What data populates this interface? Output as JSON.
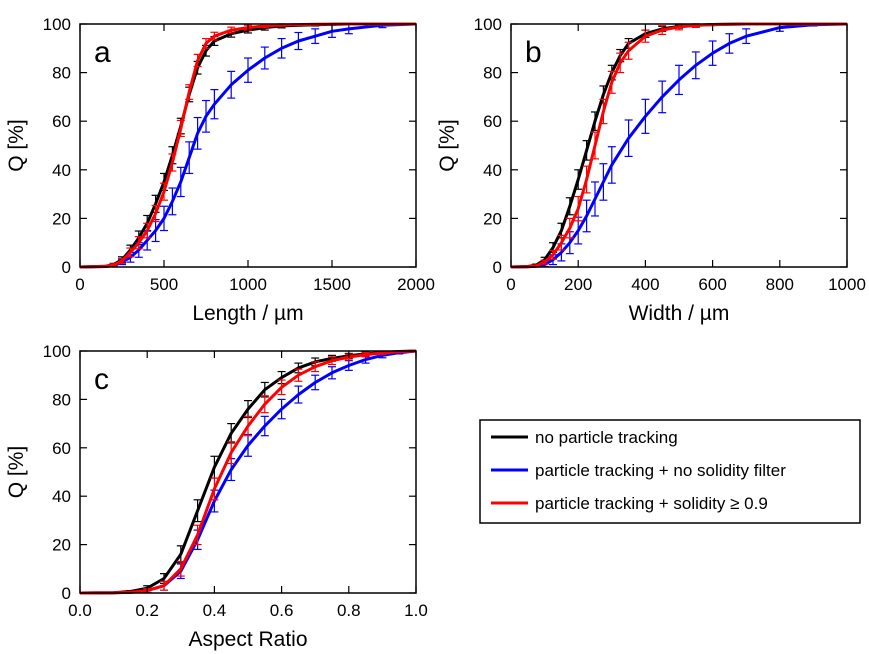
{
  "chart_data": [
    {
      "type": "line",
      "panel_label": "a",
      "xlabel": "Length / µm",
      "ylabel": "Q [%]",
      "xlim": [
        0,
        2000
      ],
      "ylim": [
        0,
        100
      ],
      "xticks": [
        0,
        500,
        1000,
        1500,
        2000
      ],
      "yticks": [
        0,
        20,
        40,
        60,
        80,
        100
      ],
      "xtick_labels": [
        "0",
        "500",
        "1000",
        "1500",
        "2000"
      ],
      "ytick_labels": [
        "0",
        "20",
        "40",
        "60",
        "80",
        "100"
      ],
      "error_bars": true,
      "series": [
        {
          "color": "#000000",
          "x": [
            0,
            150,
            200,
            250,
            300,
            350,
            400,
            450,
            500,
            550,
            600,
            650,
            700,
            750,
            800,
            900,
            1000,
            1100,
            1200,
            1400,
            1600,
            2000
          ],
          "y": [
            0,
            0.3,
            1,
            3,
            7,
            12,
            18,
            26,
            35,
            46,
            58,
            71,
            82,
            89,
            93,
            96,
            97.5,
            98.5,
            99.2,
            99.7,
            100,
            100
          ],
          "err": [
            0,
            0.2,
            0.5,
            1.2,
            2,
            2.8,
            3.2,
            3.5,
            3.5,
            3.5,
            3.2,
            3,
            2.6,
            2.2,
            1.8,
            1.4,
            1.2,
            1,
            0.8,
            0.5,
            0.3,
            0
          ]
        },
        {
          "color": "#0000ff",
          "x": [
            0,
            150,
            200,
            250,
            300,
            350,
            400,
            450,
            500,
            550,
            600,
            650,
            700,
            750,
            800,
            900,
            1000,
            1100,
            1200,
            1300,
            1400,
            1500,
            1600,
            1800,
            2000
          ],
          "y": [
            0,
            0.2,
            0.6,
            2,
            4,
            7,
            11,
            15,
            20,
            27,
            35,
            45,
            55,
            62,
            67,
            75,
            81,
            86,
            90,
            93,
            95,
            97,
            98,
            99.5,
            100
          ],
          "err": [
            0,
            0.2,
            0.4,
            1,
            2,
            3,
            4,
            4.5,
            5,
            5.5,
            6,
            6.5,
            6.5,
            6.5,
            6,
            5.5,
            5,
            4.5,
            4,
            3.5,
            3,
            2.5,
            2,
            1,
            0
          ]
        },
        {
          "color": "#ff0000",
          "x": [
            0,
            150,
            200,
            250,
            300,
            350,
            400,
            450,
            500,
            550,
            600,
            650,
            700,
            750,
            800,
            900,
            1000,
            1100,
            1200,
            1400,
            1600,
            2000
          ],
          "y": [
            0,
            0.2,
            0.8,
            2.5,
            6,
            10,
            15,
            22,
            31,
            43,
            57,
            72,
            85,
            92,
            95,
            97.5,
            98.5,
            99.2,
            99.6,
            99.9,
            100,
            100
          ],
          "err": [
            0,
            0.2,
            0.5,
            1,
            1.8,
            2.5,
            3,
            3.3,
            3.5,
            3.5,
            3.3,
            3,
            2.5,
            2,
            1.6,
            1.2,
            1,
            0.7,
            0.5,
            0.3,
            0.2,
            0
          ]
        }
      ]
    },
    {
      "type": "line",
      "panel_label": "b",
      "xlabel": "Width / µm",
      "ylabel": "Q [%]",
      "xlim": [
        0,
        1000
      ],
      "ylim": [
        0,
        100
      ],
      "xticks": [
        0,
        200,
        400,
        600,
        800,
        1000
      ],
      "yticks": [
        0,
        20,
        40,
        60,
        80,
        100
      ],
      "xtick_labels": [
        "0",
        "200",
        "400",
        "600",
        "800",
        "1000"
      ],
      "ytick_labels": [
        "0",
        "20",
        "40",
        "60",
        "80",
        "100"
      ],
      "error_bars": true,
      "series": [
        {
          "color": "#000000",
          "x": [
            0,
            50,
            75,
            100,
            125,
            150,
            175,
            200,
            225,
            250,
            275,
            300,
            325,
            350,
            400,
            450,
            500,
            550,
            600,
            700,
            800,
            1000
          ],
          "y": [
            0,
            0.2,
            0.8,
            3,
            8,
            15,
            25,
            36,
            48,
            60,
            71,
            80,
            87,
            92,
            96,
            98,
            99,
            99.5,
            99.8,
            100,
            100,
            100
          ],
          "err": [
            0,
            0.2,
            0.4,
            1,
            2,
            3,
            3.5,
            4,
            4,
            3.8,
            3.5,
            3,
            2.5,
            2,
            1.5,
            1,
            0.7,
            0.5,
            0.3,
            0.1,
            0,
            0
          ]
        },
        {
          "color": "#0000ff",
          "x": [
            0,
            50,
            75,
            100,
            125,
            150,
            175,
            200,
            225,
            250,
            275,
            300,
            350,
            400,
            450,
            500,
            550,
            600,
            650,
            700,
            800,
            900,
            1000
          ],
          "y": [
            0,
            0.1,
            0.3,
            1,
            3,
            6,
            10,
            15,
            21,
            28,
            35,
            42,
            53,
            62,
            70,
            77,
            83,
            88,
            92,
            95,
            98.5,
            99.7,
            100
          ],
          "err": [
            0,
            0.1,
            0.3,
            0.8,
            2,
            3.5,
            4.5,
            5.5,
            6.5,
            7,
            7.5,
            7.5,
            7.5,
            7,
            6.5,
            6,
            5.5,
            5,
            4,
            3,
            1.5,
            0.5,
            0
          ]
        },
        {
          "color": "#ff0000",
          "x": [
            0,
            50,
            75,
            100,
            125,
            150,
            175,
            200,
            225,
            250,
            275,
            300,
            325,
            350,
            400,
            450,
            500,
            550,
            600,
            700,
            800,
            1000
          ],
          "y": [
            0,
            0.1,
            0.5,
            2,
            5,
            10,
            16,
            24,
            36,
            50,
            64,
            76,
            84,
            89,
            95,
            97.5,
            98.8,
            99.4,
            99.8,
            100,
            100,
            100
          ],
          "err": [
            0,
            0.1,
            0.3,
            0.8,
            1.8,
            3,
            4,
            5,
            5.5,
            5.5,
            5,
            4.5,
            4,
            3.5,
            2.5,
            1.8,
            1.2,
            0.8,
            0.5,
            0.2,
            0,
            0
          ]
        }
      ]
    },
    {
      "type": "line",
      "panel_label": "c",
      "xlabel": "Aspect Ratio",
      "ylabel": "Q [%]",
      "xlim": [
        0,
        1
      ],
      "ylim": [
        0,
        100
      ],
      "xticks": [
        0,
        0.2,
        0.4,
        0.6,
        0.8,
        1.0
      ],
      "yticks": [
        0,
        20,
        40,
        60,
        80,
        100
      ],
      "xtick_labels": [
        "0.0",
        "0.2",
        "0.4",
        "0.6",
        "0.8",
        "1.0"
      ],
      "ytick_labels": [
        "0",
        "20",
        "40",
        "60",
        "80",
        "100"
      ],
      "error_bars": true,
      "series": [
        {
          "color": "#000000",
          "x": [
            0,
            0.1,
            0.15,
            0.2,
            0.25,
            0.3,
            0.35,
            0.4,
            0.45,
            0.5,
            0.55,
            0.6,
            0.65,
            0.7,
            0.75,
            0.8,
            0.85,
            0.9,
            0.95,
            1.0
          ],
          "y": [
            0,
            0.1,
            0.6,
            2,
            6,
            16,
            34,
            52,
            66,
            76,
            84,
            89,
            93,
            95.5,
            97,
            98,
            98.8,
            99.4,
            99.8,
            100
          ],
          "err": [
            0,
            0.1,
            0.4,
            1,
            2,
            3.5,
            4.5,
            4.5,
            4,
            3.5,
            3,
            2.5,
            2,
            1.6,
            1.2,
            1,
            0.8,
            0.5,
            0.3,
            0
          ]
        },
        {
          "color": "#0000ff",
          "x": [
            0,
            0.1,
            0.15,
            0.2,
            0.25,
            0.3,
            0.35,
            0.4,
            0.45,
            0.5,
            0.55,
            0.6,
            0.65,
            0.7,
            0.75,
            0.8,
            0.85,
            0.9,
            0.95,
            1.0
          ],
          "y": [
            0,
            0.1,
            0.3,
            1,
            3,
            9,
            22,
            38,
            51,
            61,
            69,
            76,
            82,
            87,
            91,
            94,
            96.5,
            98.2,
            99.3,
            100
          ],
          "err": [
            0,
            0.1,
            0.3,
            0.8,
            1.8,
            3,
            4,
            4.5,
            4.5,
            4.5,
            4,
            4,
            3.5,
            3,
            2.5,
            2,
            1.5,
            1,
            0.5,
            0
          ]
        },
        {
          "color": "#ff0000",
          "x": [
            0,
            0.1,
            0.15,
            0.2,
            0.25,
            0.3,
            0.35,
            0.4,
            0.45,
            0.5,
            0.55,
            0.6,
            0.65,
            0.7,
            0.75,
            0.8,
            0.85,
            0.9,
            0.95,
            1.0
          ],
          "y": [
            0,
            0.1,
            0.3,
            1,
            3,
            10,
            24,
            43,
            58,
            69,
            78,
            85,
            90,
            93.5,
            96,
            97.5,
            98.5,
            99.2,
            99.7,
            100
          ],
          "err": [
            0,
            0.1,
            0.3,
            0.8,
            1.8,
            3,
            4,
            4.5,
            4.5,
            4,
            3.5,
            3,
            2.5,
            2,
            1.6,
            1.2,
            0.9,
            0.6,
            0.3,
            0
          ]
        }
      ]
    }
  ],
  "legend": {
    "placement": "right of panel c",
    "entries": [
      {
        "label": "no particle tracking",
        "color": "#000000"
      },
      {
        "label": "particle tracking + no solidity filter",
        "color": "#0000ff"
      },
      {
        "label": "particle tracking + solidity ≥ 0.9",
        "color": "#ff0000"
      }
    ]
  }
}
